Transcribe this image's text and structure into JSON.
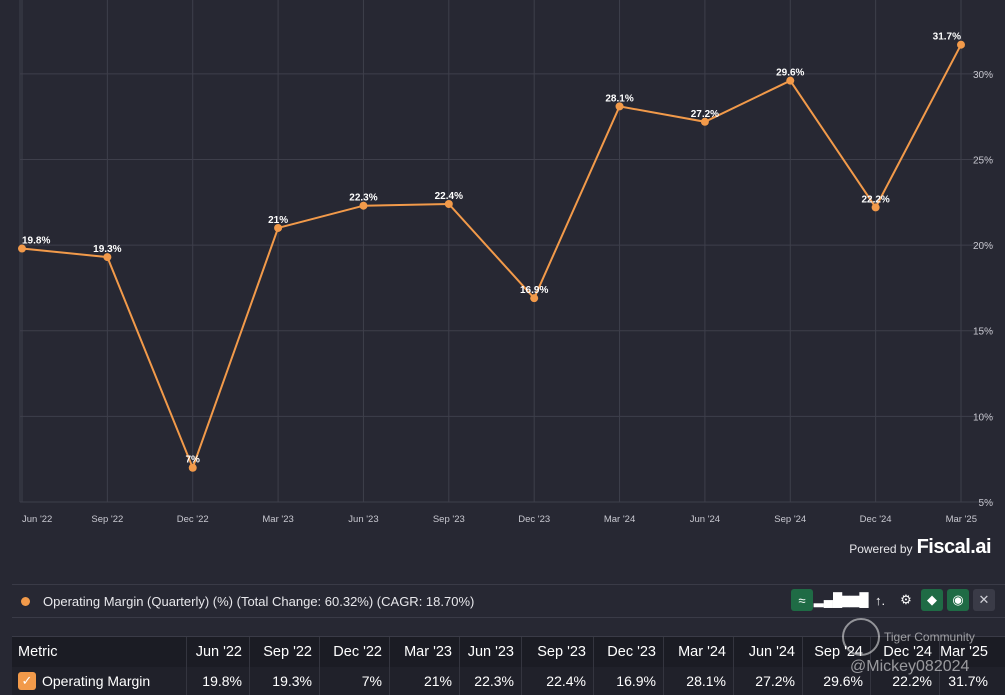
{
  "chart_data": {
    "type": "line",
    "x": [
      "Jun '22",
      "Sep '22",
      "Dec '22",
      "Mar '23",
      "Jun '23",
      "Sep '23",
      "Dec '23",
      "Mar '24",
      "Jun '24",
      "Sep '24",
      "Dec '24",
      "Mar '25"
    ],
    "series": [
      {
        "values": [
          19.8,
          19.3,
          7,
          21,
          22.3,
          22.4,
          16.9,
          28.1,
          27.2,
          29.6,
          22.2,
          31.7
        ],
        "labels": [
          "19.8%",
          "19.3%",
          "7%",
          "21%",
          "22.3%",
          "22.4%",
          "16.9%",
          "28.1%",
          "27.2%",
          "29.6%",
          "22.2%",
          "31.7%"
        ]
      }
    ],
    "ylim": [
      5,
      32.5
    ],
    "yticks": [
      5,
      10,
      15,
      20,
      25,
      30
    ],
    "ytick_labels": [
      "5%",
      "10%",
      "15%",
      "20%",
      "25%",
      "30%"
    ],
    "grid": true,
    "colors": {
      "line": "#f29a4a",
      "grid": "#3e3f4b",
      "background": "#272833"
    }
  },
  "powered_by": {
    "prefix": "Powered by",
    "brand": "Fiscal.ai"
  },
  "legend": {
    "text": "Operating Margin (Quarterly) (%) (Total Change: 60.32%) (CAGR: 18.70%)"
  },
  "toolbar": [
    {
      "icon": "line-chart-icon",
      "glyph": "≈",
      "style": "green"
    },
    {
      "icon": "bar-chart-icon",
      "glyph": "▂▄█",
      "style": "plain"
    },
    {
      "icon": "grouped-bar-icon",
      "glyph": "▆▆█",
      "style": "plain"
    },
    {
      "icon": "sort-icon",
      "glyph": "↑.",
      "style": "plain"
    },
    {
      "icon": "gear-icon",
      "glyph": "⚙",
      "style": "plain"
    },
    {
      "icon": "tag-icon",
      "glyph": "◆",
      "style": "green"
    },
    {
      "icon": "eye-icon",
      "glyph": "◉",
      "style": "green"
    },
    {
      "icon": "close-icon",
      "glyph": "✕",
      "style": "dark"
    }
  ],
  "table": {
    "headers": [
      "Metric",
      "Jun '22",
      "Sep '22",
      "Dec '22",
      "Mar '23",
      "Jun '23",
      "Sep '23",
      "Dec '23",
      "Mar '24",
      "Jun '24",
      "Sep '24",
      "Dec '24",
      "Mar '25"
    ],
    "row": {
      "metric": "Operating Margin",
      "values": [
        "19.8%",
        "19.3%",
        "7%",
        "21%",
        "22.3%",
        "22.4%",
        "16.9%",
        "28.1%",
        "27.2%",
        "29.6%",
        "22.2%",
        "31.7%"
      ]
    }
  },
  "watermark": {
    "top": "Tiger Community",
    "bottom": "@Mickey082024"
  }
}
